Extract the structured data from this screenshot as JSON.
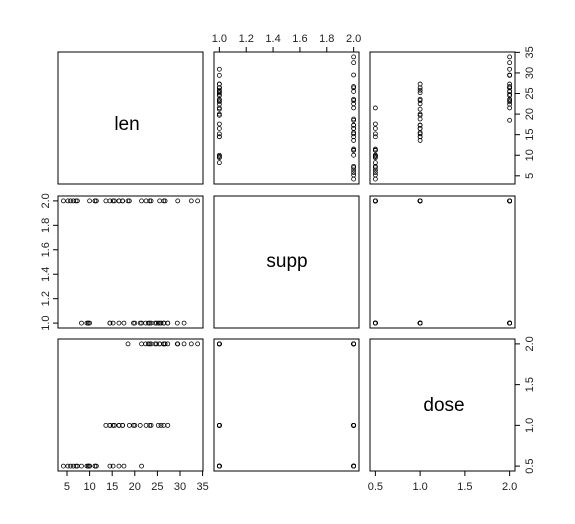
{
  "chart_data": {
    "type": "scatter",
    "variables": [
      "len",
      "supp",
      "dose"
    ],
    "ticks": {
      "len": [
        5,
        10,
        15,
        20,
        25,
        30,
        35
      ],
      "supp": [
        1.0,
        1.2,
        1.4,
        1.6,
        1.8,
        2.0
      ],
      "dose": [
        0.5,
        1.0,
        1.5,
        2.0
      ]
    },
    "tick_labels": {
      "len": [
        "5",
        "10",
        "15",
        "20",
        "25",
        "30",
        "35"
      ],
      "supp": [
        "1.0",
        "1.2",
        "1.4",
        "1.6",
        "1.8",
        "2.0"
      ],
      "dose": [
        "0.5",
        "1.0",
        "1.5",
        "2.0"
      ]
    },
    "ranges": {
      "len": [
        4.2,
        33.9
      ],
      "supp": [
        1,
        2
      ],
      "dose": [
        0.5,
        2
      ]
    },
    "observations": {
      "len": [
        4.2,
        11.5,
        7.3,
        5.8,
        6.4,
        10,
        11.2,
        11.2,
        5.2,
        7,
        16.5,
        16.5,
        15.2,
        17.3,
        22.5,
        17.3,
        13.6,
        14.5,
        18.8,
        15.5,
        23.6,
        18.5,
        33.9,
        25.5,
        26.4,
        32.5,
        26.7,
        21.5,
        23.3,
        29.5,
        15.2,
        21.5,
        17.6,
        9.7,
        14.5,
        10,
        8.2,
        9.4,
        16.5,
        9.7,
        19.7,
        23.3,
        23.6,
        26.4,
        20,
        25.2,
        25.8,
        21.2,
        14.5,
        27.3,
        25.5,
        26.4,
        22.4,
        24.5,
        24.8,
        30.9,
        26.4,
        27.3,
        29.4,
        23
      ],
      "supp": [
        2,
        2,
        2,
        2,
        2,
        2,
        2,
        2,
        2,
        2,
        2,
        2,
        2,
        2,
        2,
        2,
        2,
        2,
        2,
        2,
        2,
        2,
        2,
        2,
        2,
        2,
        2,
        2,
        2,
        2,
        1,
        1,
        1,
        1,
        1,
        1,
        1,
        1,
        1,
        1,
        1,
        1,
        1,
        1,
        1,
        1,
        1,
        1,
        1,
        1,
        1,
        1,
        1,
        1,
        1,
        1,
        1,
        1,
        1,
        1
      ],
      "dose": [
        0.5,
        0.5,
        0.5,
        0.5,
        0.5,
        0.5,
        0.5,
        0.5,
        0.5,
        0.5,
        1,
        1,
        1,
        1,
        1,
        1,
        1,
        1,
        1,
        1,
        2,
        2,
        2,
        2,
        2,
        2,
        2,
        2,
        2,
        2,
        0.5,
        0.5,
        0.5,
        0.5,
        0.5,
        0.5,
        0.5,
        0.5,
        0.5,
        0.5,
        1,
        1,
        1,
        1,
        1,
        1,
        1,
        1,
        1,
        1,
        2,
        2,
        2,
        2,
        2,
        2,
        2,
        2,
        2,
        2
      ]
    }
  }
}
